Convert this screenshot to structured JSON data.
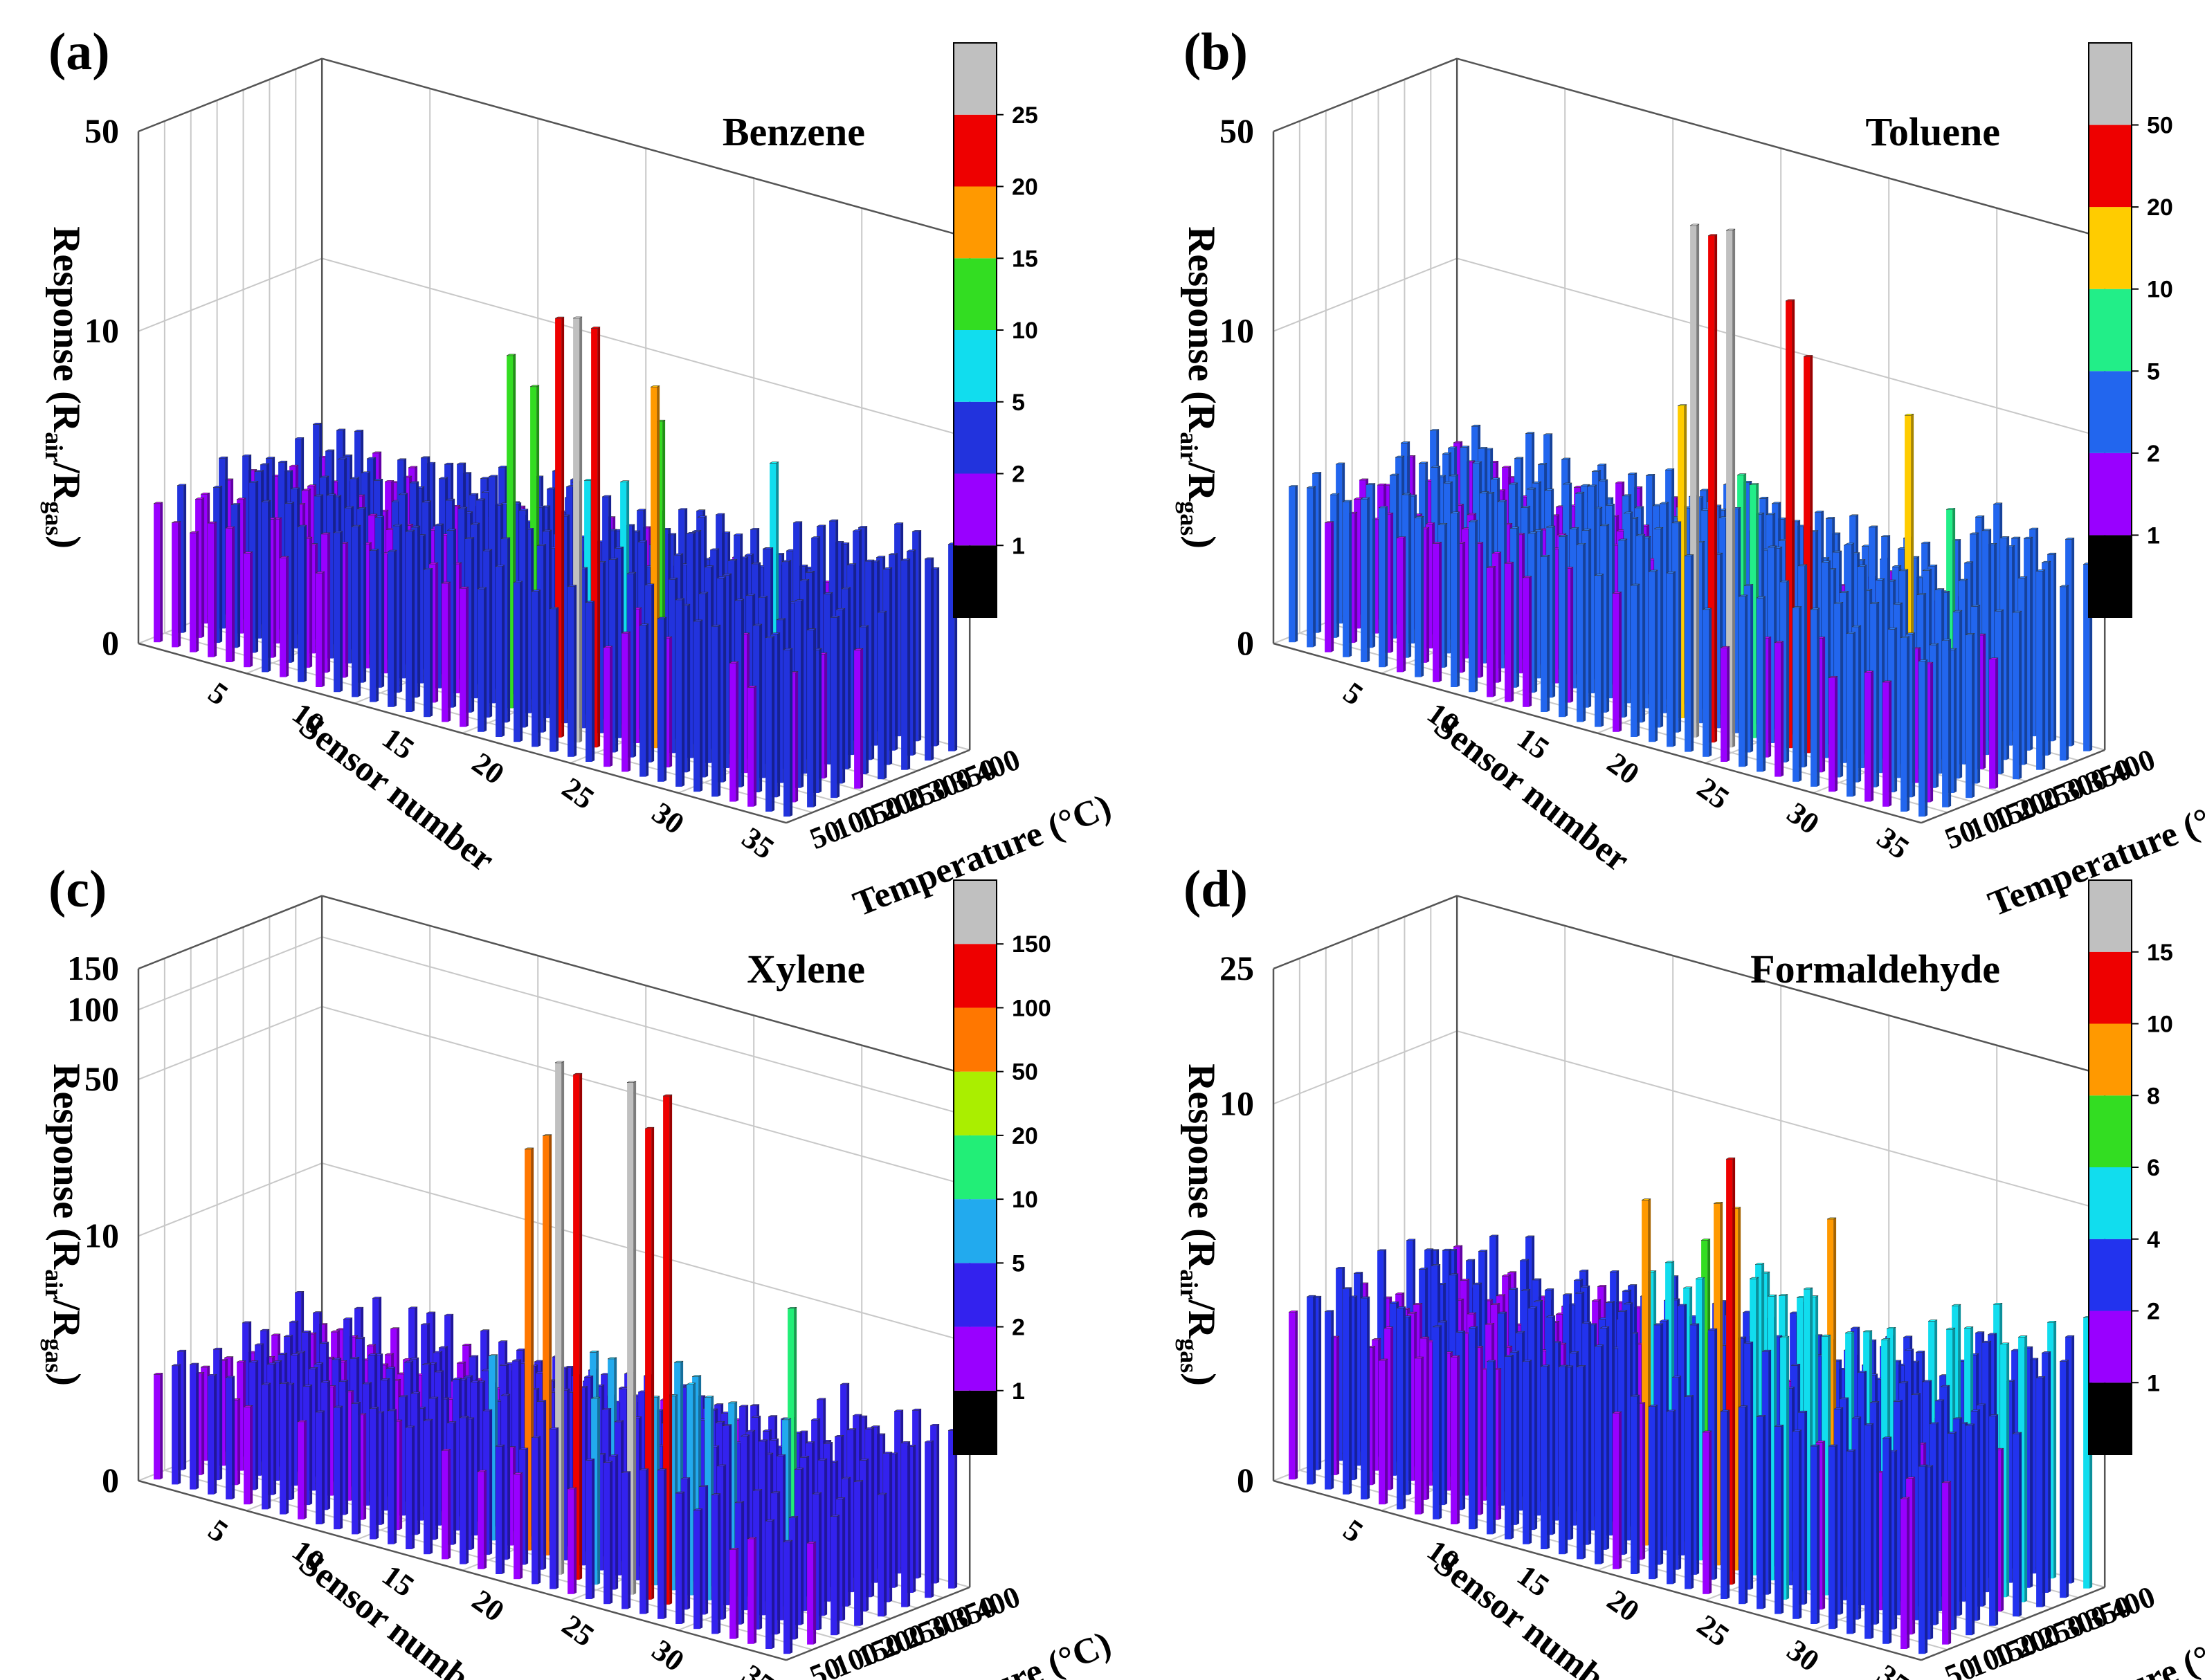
{
  "chart_data": [
    {
      "type": "bar3d",
      "panel_label": "(a)",
      "title": "Benzene",
      "ylabel": "Response (R",
      "ylabel_sub1": "air",
      "ylabel_mid": "/R",
      "ylabel_sub2": "gas",
      "ylabel_end": ")",
      "xlabel": "Sensor number",
      "zlabel": "Temperature (°C)",
      "y_ticks": [
        "0",
        "10",
        "50"
      ],
      "x_ticks": [
        "5",
        "10",
        "15",
        "20",
        "25",
        "30",
        "35"
      ],
      "z_ticks": [
        "50",
        "100",
        "150",
        "200",
        "250",
        "300",
        "350",
        "400"
      ],
      "colorbar_ticks": [
        "1",
        "2",
        "5",
        "10",
        "15",
        "20",
        "25"
      ],
      "colorbar_colors": [
        "#000000",
        "#9900ff",
        "#2233dd",
        "#11ddee",
        "#33dd22",
        "#ff9900",
        "#ee0000",
        "#c0c0c0"
      ],
      "peak_responses": [
        {
          "sensor": 22,
          "temperature": 100,
          "value": 24
        },
        {
          "sensor": 23,
          "temperature": 100,
          "value": 25
        },
        {
          "sensor": 24,
          "temperature": 100,
          "value": 24
        },
        {
          "sensor": 18,
          "temperature": 150,
          "value": 14
        },
        {
          "sensor": 26,
          "temperature": 150,
          "value": 15
        },
        {
          "sensor": 18,
          "temperature": 200,
          "value": 10
        },
        {
          "sensor": 25,
          "temperature": 200,
          "value": 10
        },
        {
          "sensor": 30,
          "temperature": 250,
          "value": 8
        }
      ]
    },
    {
      "type": "bar3d",
      "panel_label": "(b)",
      "title": "Toluene",
      "ylabel": "Response (R",
      "ylabel_sub1": "air",
      "ylabel_mid": "/R",
      "ylabel_sub2": "gas",
      "ylabel_end": ")",
      "xlabel": "Sensor number",
      "zlabel": "Temperature (°C)",
      "y_ticks": [
        "0",
        "10",
        "50"
      ],
      "x_ticks": [
        "5",
        "10",
        "15",
        "20",
        "25",
        "30",
        "35"
      ],
      "z_ticks": [
        "50",
        "100",
        "150",
        "200",
        "250",
        "300",
        "350",
        "400"
      ],
      "colorbar_ticks": [
        "1",
        "2",
        "5",
        "10",
        "20",
        "50"
      ],
      "colorbar_colors": [
        "#000000",
        "#9900ff",
        "#2266ee",
        "#22ee88",
        "#ffcc00",
        "#ee0000",
        "#c0c0c0"
      ],
      "peak_responses": [
        {
          "sensor": 22,
          "temperature": 100,
          "value": 50
        },
        {
          "sensor": 23,
          "temperature": 100,
          "value": 48
        },
        {
          "sensor": 24,
          "temperature": 100,
          "value": 52
        },
        {
          "sensor": 26,
          "temperature": 150,
          "value": 30
        },
        {
          "sensor": 27,
          "temperature": 150,
          "value": 20
        },
        {
          "sensor": 20,
          "temperature": 150,
          "value": 10
        },
        {
          "sensor": 30,
          "temperature": 250,
          "value": 12
        }
      ]
    },
    {
      "type": "bar3d",
      "panel_label": "(c)",
      "title": "Xylene",
      "ylabel": "Response (R",
      "ylabel_sub1": "air",
      "ylabel_mid": "/R",
      "ylabel_sub2": "gas",
      "ylabel_end": ")",
      "xlabel": "Sensor number",
      "zlabel": "Temperature (°C)",
      "y_ticks": [
        "0",
        "10",
        "50",
        "100",
        "150"
      ],
      "x_ticks": [
        "5",
        "10",
        "15",
        "20",
        "25",
        "30",
        "35"
      ],
      "z_ticks": [
        "50",
        "100",
        "150",
        "200",
        "250",
        "300",
        "350",
        "400"
      ],
      "colorbar_ticks": [
        "1",
        "2",
        "5",
        "10",
        "20",
        "50",
        "100",
        "150"
      ],
      "colorbar_colors": [
        "#000000",
        "#9900ff",
        "#3322ee",
        "#22aaee",
        "#22ee77",
        "#aaee00",
        "#ff7700",
        "#ee0000",
        "#c0c0c0"
      ],
      "peak_responses": [
        {
          "sensor": 22,
          "temperature": 100,
          "value": 150
        },
        {
          "sensor": 23,
          "temperature": 100,
          "value": 140
        },
        {
          "sensor": 26,
          "temperature": 100,
          "value": 150
        },
        {
          "sensor": 27,
          "temperature": 100,
          "value": 100
        },
        {
          "sensor": 28,
          "temperature": 100,
          "value": 145
        },
        {
          "sensor": 19,
          "temperature": 150,
          "value": 50
        },
        {
          "sensor": 20,
          "temperature": 150,
          "value": 60
        },
        {
          "sensor": 31,
          "temperature": 250,
          "value": 15
        }
      ]
    },
    {
      "type": "bar3d",
      "panel_label": "(d)",
      "title": "Formaldehyde",
      "ylabel": "Response (R",
      "ylabel_sub1": "air",
      "ylabel_mid": "/R",
      "ylabel_sub2": "gas",
      "ylabel_end": ")",
      "xlabel": "Sensor number",
      "zlabel": "Temperature (°C)",
      "y_ticks": [
        "0",
        "10",
        "25"
      ],
      "x_ticks": [
        "5",
        "10",
        "15",
        "20",
        "25",
        "30",
        "35"
      ],
      "z_ticks": [
        "50",
        "100",
        "150",
        "200",
        "250",
        "300",
        "350",
        "400"
      ],
      "colorbar_ticks": [
        "1",
        "2",
        "4",
        "6",
        "8",
        "10",
        "15"
      ],
      "colorbar_colors": [
        "#000000",
        "#9900ff",
        "#2233ee",
        "#11ddee",
        "#33dd22",
        "#ff9900",
        "#ee0000",
        "#c0c0c0"
      ],
      "peak_responses": [
        {
          "sensor": 24,
          "temperature": 100,
          "value": 14
        },
        {
          "sensor": 22,
          "temperature": 150,
          "value": 9
        },
        {
          "sensor": 23,
          "temperature": 150,
          "value": 9
        },
        {
          "sensor": 18,
          "temperature": 150,
          "value": 8
        },
        {
          "sensor": 27,
          "temperature": 200,
          "value": 9
        },
        {
          "sensor": 20,
          "temperature": 200,
          "value": 6
        },
        {
          "sensor": 34,
          "temperature": 300,
          "value": 4
        }
      ]
    }
  ]
}
